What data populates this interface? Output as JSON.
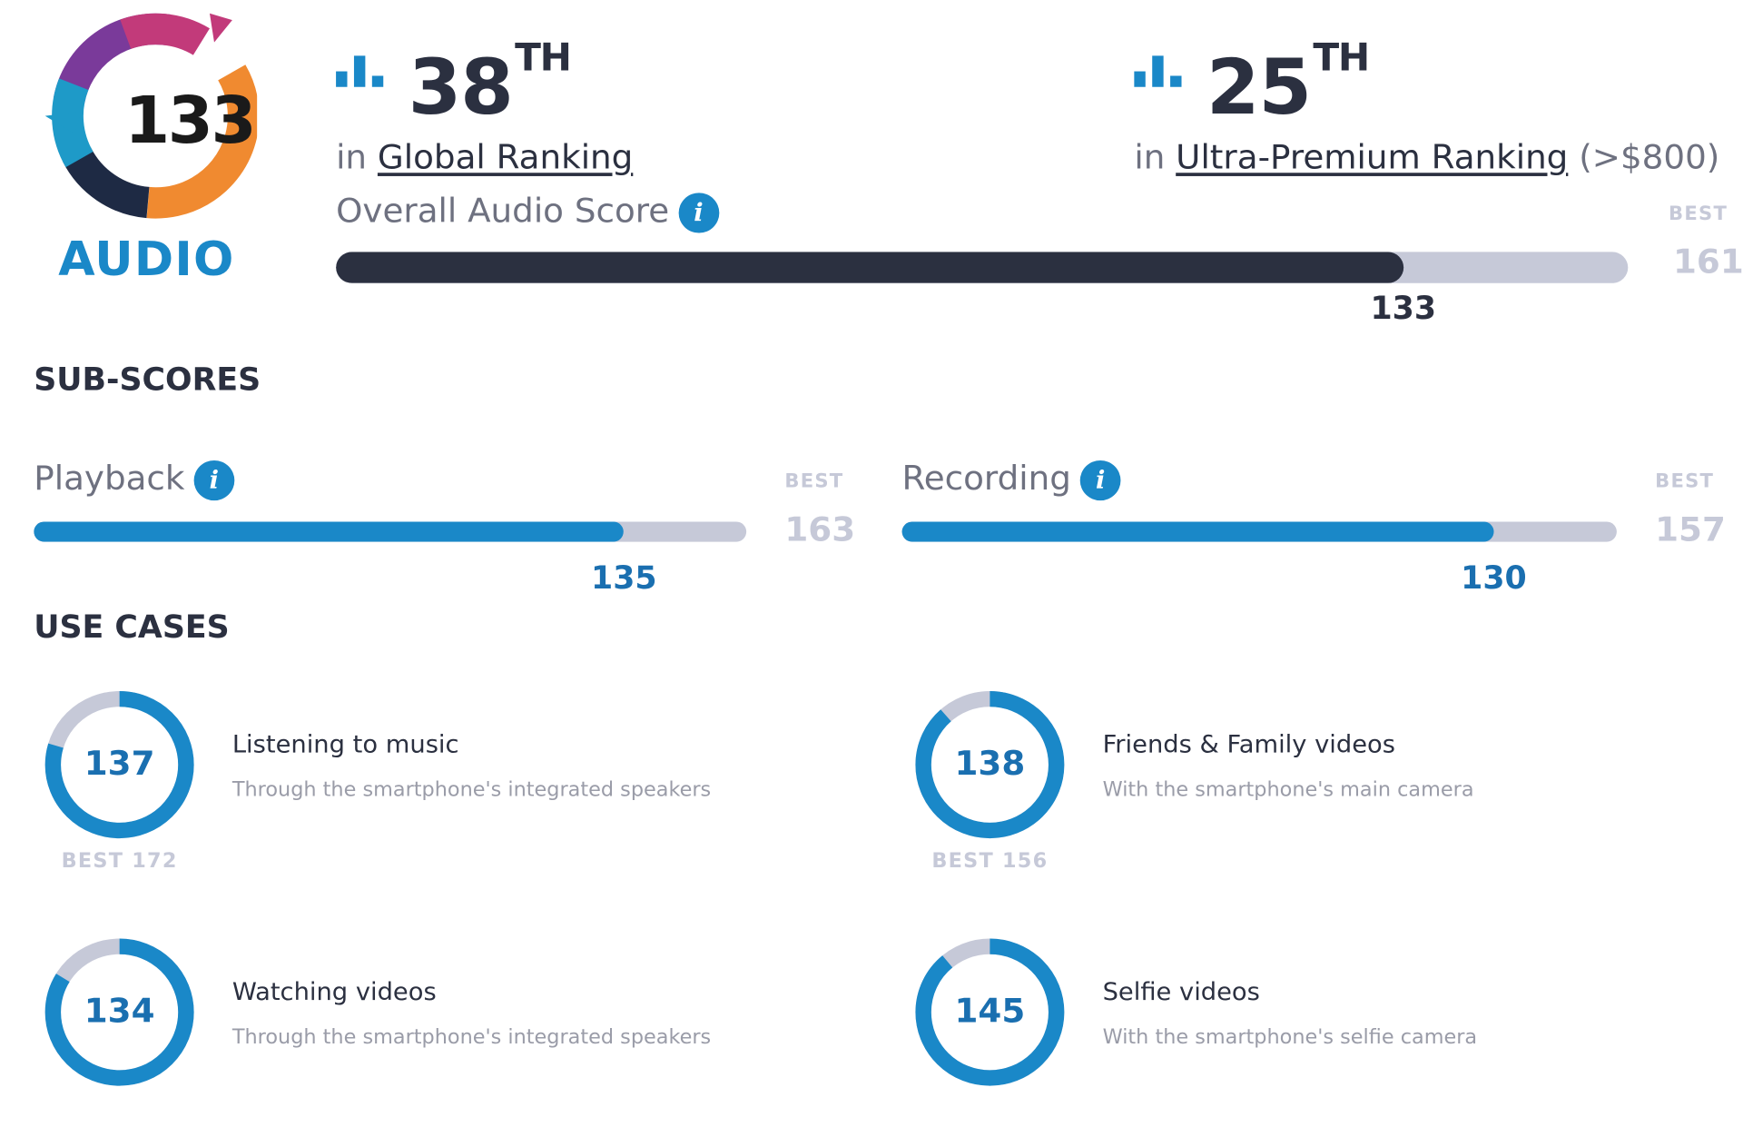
{
  "colors": {
    "accent_blue": "#1a88c8",
    "dark_bar": "#2b3040",
    "track_grey": "#c6c9d8",
    "logo_pink": "#c23a7a",
    "logo_purple": "#7a3a9a",
    "logo_orange": "#f08a30",
    "logo_teal": "#1e9ac8",
    "logo_navy": "#1e2a44"
  },
  "logo": {
    "score": "133",
    "label": "AUDIO"
  },
  "global_rank": {
    "number": "38",
    "suffix": "TH",
    "prefix": "in",
    "link": "Global Ranking"
  },
  "segment_rank": {
    "number": "25",
    "suffix": "TH",
    "prefix": "in",
    "link": "Ultra-Premium Ranking",
    "note": "(>$800)"
  },
  "overall": {
    "title": "Overall Audio Score",
    "info_icon": "info-icon",
    "score": 133,
    "score_label": "133",
    "best_label": "BEST",
    "best": 161,
    "best_text": "161"
  },
  "subscores": {
    "heading": "SUB-SCORES",
    "items": [
      {
        "title": "Playback",
        "info_icon": "info-icon",
        "score": 135,
        "score_label": "135",
        "best_label": "BEST",
        "best": 163,
        "best_text": "163"
      },
      {
        "title": "Recording",
        "info_icon": "info-icon",
        "score": 130,
        "score_label": "130",
        "best_label": "BEST",
        "best": 157,
        "best_text": "157"
      }
    ]
  },
  "use_cases": {
    "heading": "USE CASES",
    "items": [
      {
        "score": 137,
        "score_label": "137",
        "best": 172,
        "best_text": "BEST 172",
        "title": "Listening to music",
        "desc": "Through the smartphone's integrated speakers"
      },
      {
        "score": 138,
        "score_label": "138",
        "best": 156,
        "best_text": "BEST 156",
        "title": "Friends & Family videos",
        "desc": "With the smartphone's main camera"
      },
      {
        "score": 134,
        "score_label": "134",
        "best": 160,
        "best_text": "",
        "title": "Watching videos",
        "desc": "Through the smartphone's integrated speakers"
      },
      {
        "score": 145,
        "score_label": "145",
        "best": 163,
        "best_text": "",
        "title": "Selfie videos",
        "desc": "With the smartphone's selfie camera"
      }
    ]
  }
}
